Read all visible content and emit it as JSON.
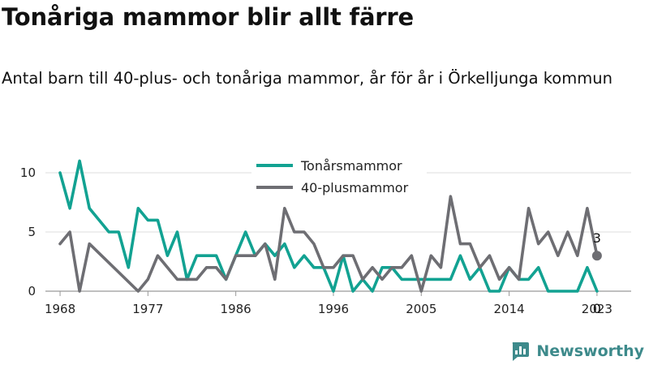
{
  "title": "Tonåriga mammor blir allt färre",
  "subtitle": "Antal barn till 40-plus- och tonåriga mammor, år för år i Örkelljunga kommun",
  "brand": {
    "name": "Newsworthy",
    "color": "#3d8a8b",
    "icon": "newsworthy-bar-chart-icon"
  },
  "chart_data": {
    "type": "line",
    "x_ticks": [
      1968,
      1977,
      1986,
      1996,
      2005,
      2014,
      2023
    ],
    "x_tick_labels": [
      "1968",
      "1977",
      "1986",
      "1996",
      "2005",
      "2014",
      "2023"
    ],
    "y_ticks": [
      0,
      5,
      10
    ],
    "y_tick_labels": [
      "0",
      "5",
      "10"
    ],
    "xlim": [
      1966.5,
      2026.5
    ],
    "ylim": [
      0,
      10
    ],
    "grid": true,
    "legend_placement": "top-center",
    "series": [
      {
        "name": "Tonårsmammor",
        "color": "#12a292",
        "x": [
          1968,
          1969,
          1970,
          1971,
          1972,
          1973,
          1974,
          1975,
          1976,
          1977,
          1978,
          1979,
          1980,
          1981,
          1982,
          1983,
          1984,
          1985,
          1986,
          1987,
          1988,
          1989,
          1990,
          1991,
          1992,
          1993,
          1994,
          1995,
          1996,
          1997,
          1998,
          1999,
          2000,
          2001,
          2002,
          2003,
          2004,
          2005,
          2006,
          2007,
          2008,
          2009,
          2010,
          2011,
          2012,
          2013,
          2014,
          2015,
          2016,
          2017,
          2018,
          2019,
          2020,
          2021,
          2022,
          2023
        ],
        "values": [
          10,
          7,
          11,
          7,
          6,
          5,
          5,
          2,
          7,
          6,
          6,
          3,
          5,
          1,
          3,
          3,
          3,
          1,
          3,
          5,
          3,
          4,
          3,
          4,
          2,
          3,
          2,
          2,
          0,
          3,
          0,
          1,
          0,
          2,
          2,
          1,
          1,
          1,
          1,
          1,
          1,
          3,
          1,
          2,
          0,
          0,
          2,
          1,
          1,
          2,
          0,
          0,
          0,
          0,
          2,
          0
        ],
        "end_label": "0"
      },
      {
        "name": "40-plusmammor",
        "color": "#6e6e73",
        "x": [
          1968,
          1969,
          1970,
          1971,
          1976,
          1977,
          1978,
          1980,
          1982,
          1983,
          1984,
          1985,
          1986,
          1987,
          1988,
          1989,
          1990,
          1991,
          1992,
          1993,
          1994,
          1995,
          1996,
          1997,
          1998,
          1999,
          2000,
          2001,
          2002,
          2003,
          2004,
          2005,
          2006,
          2007,
          2008,
          2009,
          2010,
          2011,
          2012,
          2013,
          2014,
          2015,
          2016,
          2017,
          2018,
          2019,
          2020,
          2021,
          2022,
          2023
        ],
        "values": [
          4,
          5,
          0,
          4,
          0,
          1,
          3,
          1,
          1,
          2,
          2,
          1,
          3,
          3,
          3,
          4,
          1,
          7,
          5,
          5,
          4,
          2,
          2,
          3,
          3,
          1,
          2,
          1,
          2,
          2,
          3,
          0,
          3,
          2,
          8,
          4,
          4,
          2,
          3,
          1,
          2,
          1,
          7,
          4,
          5,
          3,
          5,
          3,
          7,
          3
        ],
        "end_label": "3"
      }
    ]
  }
}
